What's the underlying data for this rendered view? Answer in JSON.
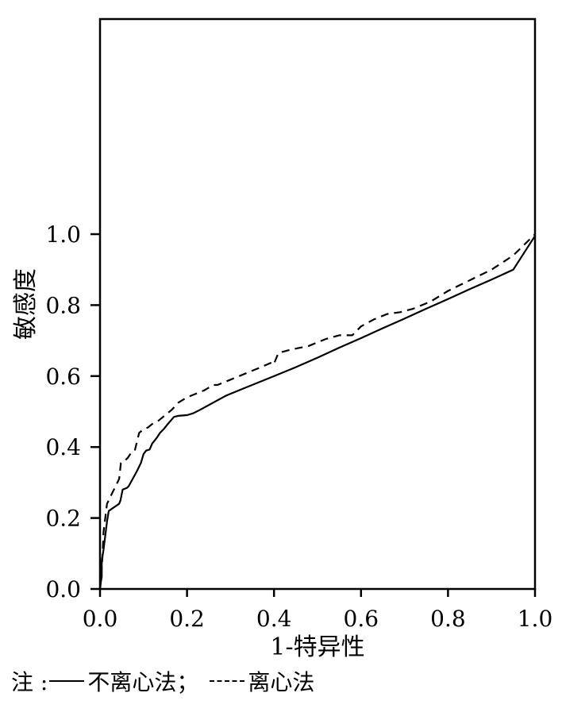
{
  "chart_data": {
    "type": "line",
    "title": "",
    "xlabel": "1-特异性",
    "ylabel": "敏感度",
    "xlim": [
      0,
      1
    ],
    "ylim": [
      0,
      1
    ],
    "xticks": [
      "0.0",
      "0.2",
      "0.4",
      "0.6",
      "0.8",
      "1.0"
    ],
    "yticks": [
      "0.0",
      "0.2",
      "0.4",
      "0.6",
      "0.8",
      "1.0"
    ],
    "grid": false,
    "series": [
      {
        "name": "不离心法",
        "style": "solid",
        "color": "#000000",
        "x": [
          0.0,
          0.002,
          0.004,
          0.004,
          0.008,
          0.012,
          0.016,
          0.02,
          0.032,
          0.044,
          0.047,
          0.052,
          0.062,
          0.066,
          0.075,
          0.084,
          0.094,
          0.1,
          0.106,
          0.114,
          0.12,
          0.13,
          0.138,
          0.146,
          0.156,
          0.163,
          0.17,
          0.18,
          0.2,
          0.214,
          0.23,
          0.26,
          0.29,
          0.33,
          0.37,
          0.41,
          0.45,
          0.5,
          0.55,
          0.6,
          0.65,
          0.7,
          0.75,
          0.8,
          0.85,
          0.9,
          0.95,
          1.0
        ],
        "y": [
          0.0,
          0.02,
          0.035,
          0.08,
          0.11,
          0.15,
          0.19,
          0.22,
          0.23,
          0.24,
          0.25,
          0.28,
          0.285,
          0.29,
          0.31,
          0.33,
          0.355,
          0.38,
          0.39,
          0.393,
          0.41,
          0.425,
          0.44,
          0.45,
          0.465,
          0.475,
          0.485,
          0.488,
          0.49,
          0.495,
          0.505,
          0.525,
          0.545,
          0.565,
          0.585,
          0.605,
          0.625,
          0.652,
          0.68,
          0.707,
          0.735,
          0.762,
          0.79,
          0.817,
          0.845,
          0.872,
          0.9,
          0.995
        ]
      },
      {
        "name": "离心法",
        "style": "dashed",
        "color": "#000000",
        "x": [
          0.0,
          0.002,
          0.004,
          0.006,
          0.008,
          0.012,
          0.016,
          0.02,
          0.026,
          0.036,
          0.044,
          0.048,
          0.056,
          0.064,
          0.072,
          0.08,
          0.084,
          0.09,
          0.1,
          0.11,
          0.12,
          0.135,
          0.15,
          0.165,
          0.18,
          0.2,
          0.22,
          0.24,
          0.26,
          0.27,
          0.3,
          0.34,
          0.37,
          0.398,
          0.4,
          0.41,
          0.44,
          0.48,
          0.5,
          0.52,
          0.55,
          0.58,
          0.6,
          0.63,
          0.66,
          0.69,
          0.72,
          0.76,
          0.8,
          0.85,
          0.9,
          0.95,
          1.0
        ],
        "y": [
          0.0,
          0.03,
          0.06,
          0.1,
          0.16,
          0.2,
          0.24,
          0.25,
          0.265,
          0.29,
          0.31,
          0.355,
          0.36,
          0.37,
          0.385,
          0.39,
          0.41,
          0.44,
          0.45,
          0.455,
          0.465,
          0.475,
          0.49,
          0.505,
          0.525,
          0.54,
          0.55,
          0.56,
          0.575,
          0.575,
          0.59,
          0.61,
          0.625,
          0.64,
          0.635,
          0.665,
          0.675,
          0.685,
          0.695,
          0.705,
          0.715,
          0.715,
          0.74,
          0.76,
          0.775,
          0.78,
          0.79,
          0.81,
          0.84,
          0.87,
          0.9,
          0.94,
          1.0
        ]
      }
    ],
    "legend": {
      "placement": "bottom",
      "prefix": "注 :",
      "separator": "；",
      "entries": [
        "不离心法",
        "离心法"
      ]
    }
  }
}
